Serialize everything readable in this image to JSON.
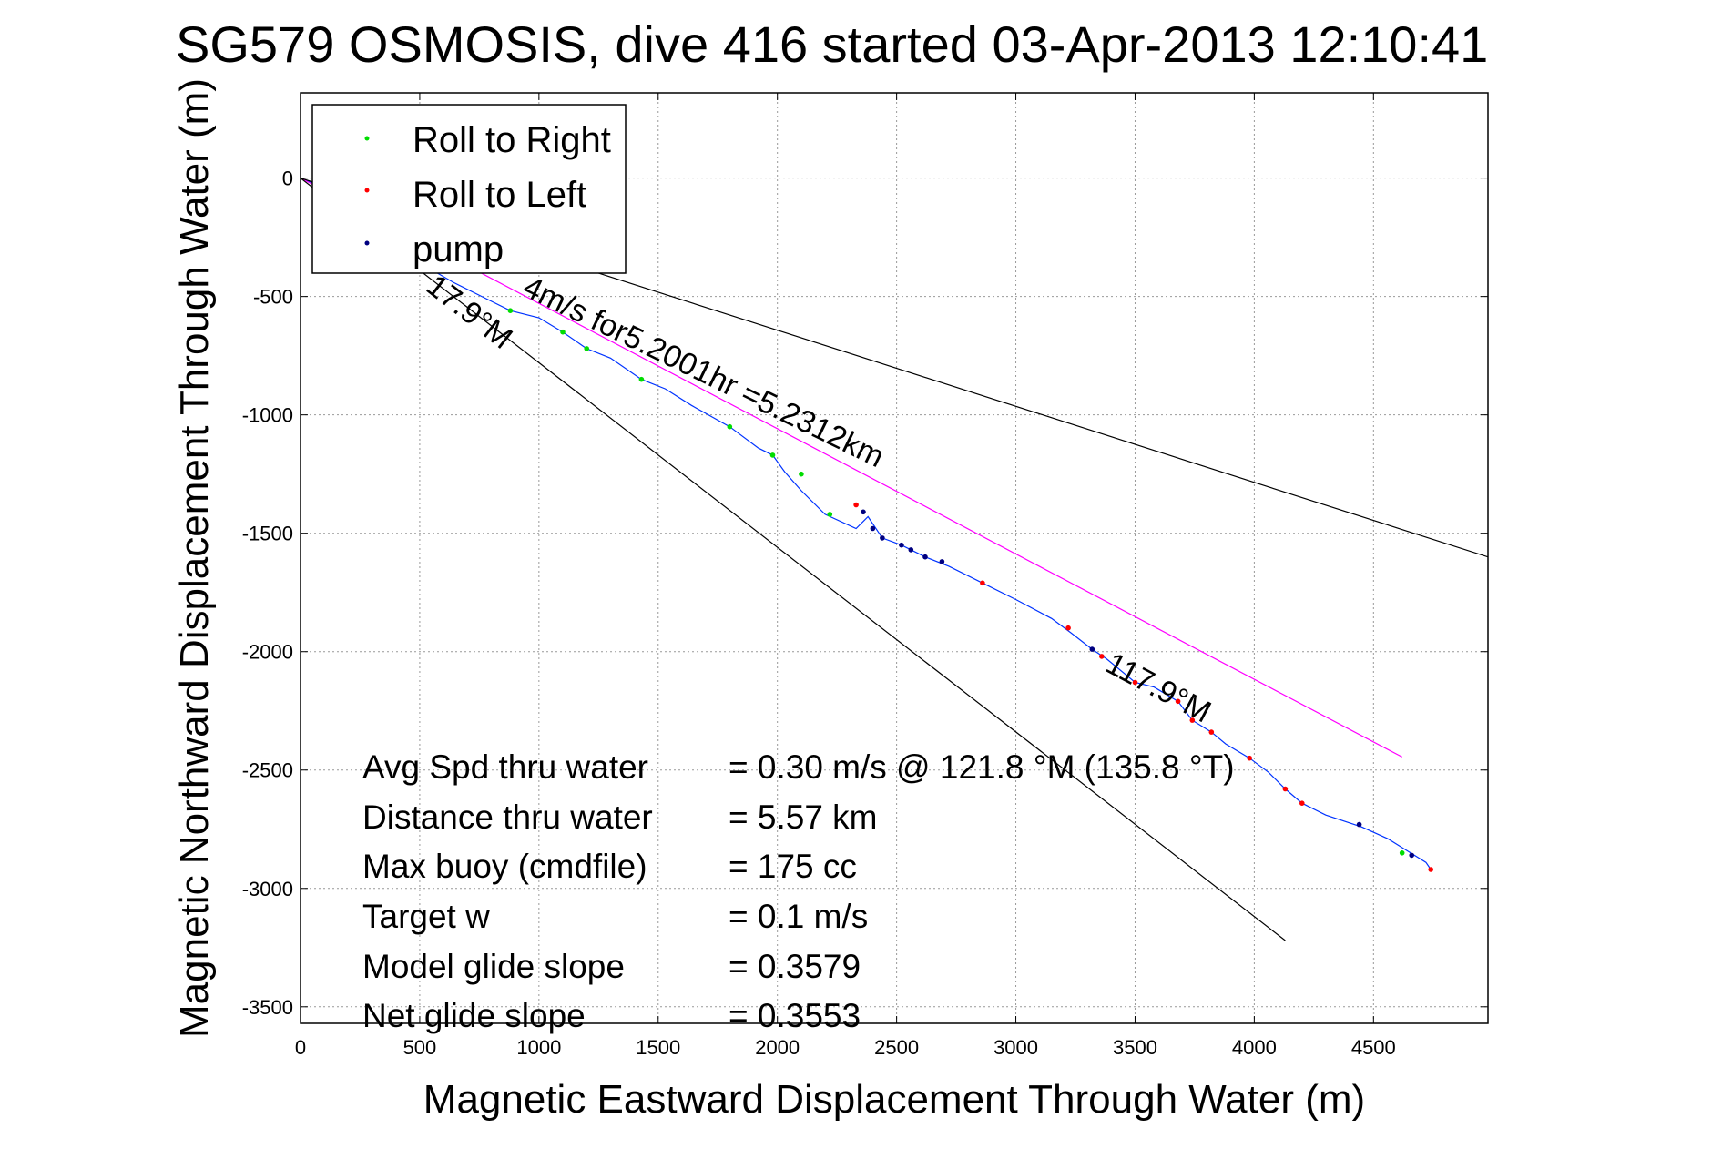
{
  "chart_data": {
    "type": "line",
    "title": "SG579 OSMOSIS, dive 416 started 03-Apr-2013 12:10:41",
    "xlabel": "Magnetic Eastward Displacement Through Water (m)",
    "ylabel": "Magnetic Northward Displacement Through Water (m)",
    "xlim": [
      0,
      4980
    ],
    "ylim": [
      -3570,
      360
    ],
    "xticks": [
      0,
      500,
      1000,
      1500,
      2000,
      2500,
      3000,
      3500,
      4000,
      4500
    ],
    "yticks": [
      0,
      -500,
      -1000,
      -1500,
      -2000,
      -2500,
      -3000,
      -3500
    ],
    "grid": true,
    "legend": {
      "placement": "top-left",
      "entries": [
        {
          "label": "Roll to Right",
          "color": "#00dd00"
        },
        {
          "label": "Roll to Left",
          "color": "#ff0000"
        },
        {
          "label": "pump",
          "color": "#000080"
        }
      ]
    },
    "series": [
      {
        "color": "#0033ff",
        "x": [
          0,
          50,
          120,
          200,
          300,
          400,
          520,
          640,
          760,
          880,
          1000,
          1100,
          1200,
          1300,
          1430,
          1530,
          1640,
          1800,
          1920,
          1980,
          2030,
          2100,
          2200,
          2330,
          2380,
          2440,
          2520,
          2620,
          2720,
          2860,
          3000,
          3150,
          3230,
          3320,
          3380,
          3500,
          3580,
          3680,
          3740,
          3820,
          3880,
          3980,
          4060,
          4130,
          4200,
          4300,
          4450,
          4560,
          4640,
          4720,
          4740
        ],
        "y": [
          0,
          -20,
          -60,
          -120,
          -200,
          -280,
          -370,
          -440,
          -500,
          -560,
          -590,
          -650,
          -720,
          -760,
          -850,
          -890,
          -960,
          -1050,
          -1140,
          -1170,
          -1240,
          -1320,
          -1420,
          -1480,
          -1430,
          -1520,
          -1550,
          -1600,
          -1640,
          -1710,
          -1780,
          -1860,
          -1920,
          -1990,
          -2030,
          -2130,
          -2150,
          -2210,
          -2290,
          -2340,
          -2390,
          -2450,
          -2510,
          -2580,
          -2640,
          -2690,
          -2740,
          -2790,
          -2840,
          -2890,
          -2920
        ]
      },
      {
        "color": "#ff00ff",
        "x": [
          0,
          4620
        ],
        "y": [
          0,
          -2445
        ]
      },
      {
        "color": "#000000",
        "x": [
          0,
          4980
        ],
        "y": [
          0,
          -1600
        ]
      },
      {
        "color": "#000000",
        "x": [
          0,
          4130
        ],
        "y": [
          0,
          -3220
        ]
      }
    ],
    "markers": {
      "roll_right": {
        "color": "#00dd00",
        "x": [
          880,
          1100,
          1200,
          1430,
          1800,
          1980,
          2100,
          2220,
          4620
        ],
        "y": [
          -560,
          -650,
          -720,
          -850,
          -1050,
          -1170,
          -1250,
          -1420,
          -2850
        ]
      },
      "roll_left": {
        "color": "#ff0000",
        "x": [
          2330,
          2860,
          3220,
          3360,
          3500,
          3680,
          3740,
          3820,
          3980,
          4130,
          4200,
          4740
        ],
        "y": [
          -1380,
          -1710,
          -1900,
          -2020,
          -2130,
          -2210,
          -2290,
          -2340,
          -2450,
          -2580,
          -2640,
          -2920
        ]
      },
      "pump": {
        "color": "#000080",
        "x": [
          2360,
          2400,
          2440,
          2520,
          2560,
          2620,
          2690,
          3320,
          4440,
          4660
        ],
        "y": [
          -1410,
          -1480,
          -1520,
          -1550,
          -1570,
          -1600,
          -1620,
          -1990,
          -2730,
          -2860
        ]
      }
    },
    "annotations": {
      "line_label_top": "4m/s for5.2001hr =5.2312km",
      "line_label_left": "17.9°M",
      "line_label_mid": "117.9°M"
    },
    "stats": [
      {
        "label": "Avg Spd thru water",
        "value": "=  0.30 m/s @ 121.8 °M (135.8 °T)"
      },
      {
        "label": "Distance thru water",
        "value": "=  5.57 km"
      },
      {
        "label": "Max buoy (cmdfile)",
        "value": "= 175 cc"
      },
      {
        "label": "Target w",
        "value": "= 0.1 m/s"
      },
      {
        "label": "Model glide slope",
        "value": "= 0.3579"
      },
      {
        "label": "Net glide slope",
        "value": "= 0.3553"
      }
    ]
  }
}
